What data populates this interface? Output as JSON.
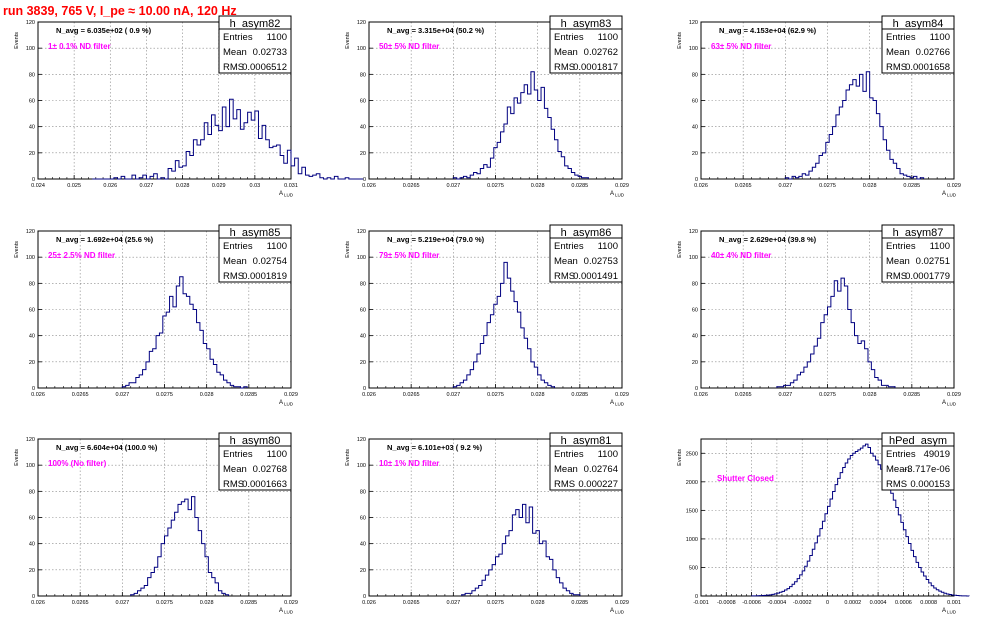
{
  "page_title": "run 3839,   765 V, I_pe ≈ 10.00 nA, 120 Hz",
  "colors": {
    "histogram": "#000080",
    "annotation": "#ff00ff",
    "title": "#ff0000",
    "grid": "#888888"
  },
  "axis_common": {
    "ylabel": "Events",
    "xlabel": "A",
    "xlabel_sub": "LUD"
  },
  "stat_labels": {
    "entries": "Entries",
    "mean": "Mean",
    "rms": "RMS"
  },
  "chart_data": [
    {
      "type": "histogram",
      "name": "h_asym82",
      "navg": "N_avg = 6.035e+02 ( 0.9 %)",
      "annotation": "1± 0.1% ND filter",
      "entries": "1100",
      "mean": "0.02733",
      "rms": "0.0006512",
      "xlim": [
        0.024,
        0.031
      ],
      "ylim": [
        0,
        120
      ],
      "xticks": [
        0.024,
        0.025,
        0.026,
        0.027,
        0.028,
        0.029,
        0.03,
        0.031
      ],
      "xticklabels": [
        "0.024",
        "0.025",
        "0.026",
        "0.027",
        "0.028",
        "0.029",
        "0.03",
        "0.031"
      ],
      "yticks": [
        0,
        20,
        40,
        60,
        80,
        100,
        120
      ],
      "yticklabels": [
        "0",
        "20",
        "40",
        "60",
        "80",
        "100",
        "120"
      ],
      "x_start": 0.0255,
      "bin_width": 0.0001,
      "values": [
        0,
        0,
        0,
        0,
        0,
        0,
        1,
        0,
        2,
        0,
        0,
        3,
        0,
        1,
        3,
        0,
        2,
        4,
        0,
        1,
        0,
        8,
        6,
        14,
        9,
        10,
        21,
        18,
        30,
        26,
        30,
        43,
        34,
        49,
        41,
        37,
        55,
        40,
        61,
        46,
        53,
        38,
        43,
        51,
        45,
        52,
        31,
        41,
        30,
        24,
        25,
        26,
        18,
        12,
        22,
        10,
        16,
        4,
        9,
        3,
        2,
        3,
        4,
        1,
        0,
        1,
        0,
        2,
        0,
        0,
        1,
        0,
        0,
        0,
        0
      ]
    },
    {
      "type": "histogram",
      "name": "h_asym83",
      "navg": "N_avg = 3.315e+04 (50.2 %)",
      "annotation": "50± 5% ND filter",
      "entries": "1100",
      "mean": "0.02762",
      "rms": "0.0001817",
      "xlim": [
        0.026,
        0.029
      ],
      "ylim": [
        0,
        120
      ],
      "xticks": [
        0.026,
        0.0265,
        0.027,
        0.0275,
        0.028,
        0.0285,
        0.029
      ],
      "xticklabels": [
        "0.026",
        "0.0265",
        "0.027",
        "0.0275",
        "0.028",
        "0.0285",
        "0.029"
      ],
      "yticks": [
        0,
        20,
        40,
        60,
        80,
        100,
        120
      ],
      "yticklabels": [
        "0",
        "20",
        "40",
        "60",
        "80",
        "100",
        "120"
      ],
      "x_start": 0.027,
      "bin_width": 4e-05,
      "values": [
        1,
        0,
        1,
        2,
        1,
        3,
        5,
        4,
        8,
        11,
        9,
        16,
        24,
        28,
        36,
        42,
        55,
        50,
        62,
        58,
        66,
        72,
        65,
        82,
        68,
        60,
        70,
        54,
        47,
        38,
        30,
        21,
        17,
        10,
        8,
        5,
        3,
        2,
        1,
        1
      ]
    },
    {
      "type": "histogram",
      "name": "h_asym84",
      "navg": "N_avg = 4.153e+04 (62.9 %)",
      "annotation": "63± 5% ND filter",
      "entries": "1100",
      "mean": "0.02766",
      "rms": "0.0001658",
      "xlim": [
        0.026,
        0.029
      ],
      "ylim": [
        0,
        120
      ],
      "xticks": [
        0.026,
        0.0265,
        0.027,
        0.0275,
        0.028,
        0.0285,
        0.029
      ],
      "xticklabels": [
        "0.026",
        "0.0265",
        "0.027",
        "0.0275",
        "0.028",
        "0.0285",
        "0.029"
      ],
      "yticks": [
        0,
        20,
        40,
        60,
        80,
        100,
        120
      ],
      "yticklabels": [
        "0",
        "20",
        "40",
        "60",
        "80",
        "100",
        "120"
      ],
      "x_start": 0.027,
      "bin_width": 4e-05,
      "values": [
        1,
        0,
        2,
        1,
        2,
        4,
        3,
        6,
        9,
        12,
        18,
        20,
        28,
        34,
        40,
        49,
        55,
        60,
        68,
        72,
        76,
        71,
        80,
        67,
        82,
        62,
        60,
        50,
        40,
        30,
        22,
        15,
        12,
        8,
        4,
        3,
        2,
        1,
        2,
        0,
        1
      ]
    },
    {
      "type": "histogram",
      "name": "h_asym85",
      "navg": "N_avg = 1.692e+04 (25.6 %)",
      "annotation": "25± 2.5% ND filter",
      "entries": "1100",
      "mean": "0.02754",
      "rms": "0.0001819",
      "xlim": [
        0.026,
        0.029
      ],
      "ylim": [
        0,
        120
      ],
      "xticks": [
        0.026,
        0.0265,
        0.027,
        0.0275,
        0.028,
        0.0285,
        0.029
      ],
      "xticklabels": [
        "0.026",
        "0.0265",
        "0.027",
        "0.0275",
        "0.028",
        "0.0285",
        "0.029"
      ],
      "yticks": [
        0,
        20,
        40,
        60,
        80,
        100,
        120
      ],
      "yticklabels": [
        "0",
        "20",
        "40",
        "60",
        "80",
        "100",
        "120"
      ],
      "x_start": 0.027,
      "bin_width": 4e-05,
      "values": [
        1,
        2,
        4,
        4,
        8,
        10,
        14,
        20,
        28,
        30,
        40,
        42,
        55,
        58,
        70,
        62,
        78,
        85,
        72,
        70,
        64,
        60,
        50,
        44,
        34,
        30,
        22,
        18,
        12,
        10,
        6,
        4,
        2,
        1,
        1,
        0,
        1
      ]
    },
    {
      "type": "histogram",
      "name": "h_asym86",
      "navg": "N_avg = 5.219e+04 (79.0 %)",
      "annotation": "79± 5% ND filter",
      "entries": "1100",
      "mean": "0.02753",
      "rms": "0.0001491",
      "xlim": [
        0.026,
        0.029
      ],
      "ylim": [
        0,
        120
      ],
      "xticks": [
        0.026,
        0.0265,
        0.027,
        0.0275,
        0.028,
        0.0285,
        0.029
      ],
      "xticklabels": [
        "0.026",
        "0.0265",
        "0.027",
        "0.0275",
        "0.028",
        "0.0285",
        "0.029"
      ],
      "yticks": [
        0,
        20,
        40,
        60,
        80,
        100,
        120
      ],
      "yticklabels": [
        "0",
        "20",
        "40",
        "60",
        "80",
        "100",
        "120"
      ],
      "x_start": 0.027,
      "bin_width": 4e-05,
      "values": [
        1,
        2,
        4,
        6,
        10,
        14,
        20,
        26,
        34,
        40,
        50,
        56,
        64,
        70,
        80,
        96,
        84,
        74,
        66,
        58,
        46,
        38,
        30,
        20,
        16,
        10,
        6,
        4,
        2,
        1
      ]
    },
    {
      "type": "histogram",
      "name": "h_asym87",
      "navg": "N_avg = 2.629e+04 (39.8 %)",
      "annotation": "40± 4% ND filter",
      "entries": "1100",
      "mean": "0.02751",
      "rms": "0.0001779",
      "xlim": [
        0.026,
        0.029
      ],
      "ylim": [
        0,
        120
      ],
      "xticks": [
        0.026,
        0.0265,
        0.027,
        0.0275,
        0.028,
        0.0285,
        0.029
      ],
      "xticklabels": [
        "0.026",
        "0.0265",
        "0.027",
        "0.0275",
        "0.028",
        "0.0285",
        "0.029"
      ],
      "yticks": [
        0,
        20,
        40,
        60,
        80,
        100,
        120
      ],
      "yticklabels": [
        "0",
        "20",
        "40",
        "60",
        "80",
        "100",
        "120"
      ],
      "x_start": 0.0269,
      "bin_width": 4e-05,
      "values": [
        1,
        1,
        2,
        2,
        4,
        6,
        10,
        12,
        16,
        20,
        26,
        32,
        38,
        50,
        56,
        62,
        70,
        82,
        74,
        84,
        78,
        60,
        50,
        40,
        34,
        36,
        30,
        20,
        14,
        8,
        6,
        2,
        2,
        1,
        1
      ]
    },
    {
      "type": "histogram",
      "name": "h_asym80",
      "navg": "N_avg = 6.604e+04 (100.0 %)",
      "annotation": "100% (No filter)",
      "entries": "1100",
      "mean": "0.02768",
      "rms": "0.0001663",
      "xlim": [
        0.026,
        0.029
      ],
      "ylim": [
        0,
        120
      ],
      "xticks": [
        0.026,
        0.0265,
        0.027,
        0.0275,
        0.028,
        0.0285,
        0.029
      ],
      "xticklabels": [
        "0.026",
        "0.0265",
        "0.027",
        "0.0275",
        "0.028",
        "0.0285",
        "0.029"
      ],
      "yticks": [
        0,
        20,
        40,
        60,
        80,
        100,
        120
      ],
      "yticklabels": [
        "0",
        "20",
        "40",
        "60",
        "80",
        "100",
        "120"
      ],
      "x_start": 0.0271,
      "bin_width": 4e-05,
      "values": [
        1,
        2,
        4,
        6,
        8,
        14,
        18,
        22,
        30,
        40,
        46,
        52,
        58,
        64,
        70,
        72,
        74,
        66,
        76,
        60,
        50,
        40,
        30,
        18,
        14,
        10,
        4,
        2,
        1
      ]
    },
    {
      "type": "histogram",
      "name": "h_asym81",
      "navg": "N_avg = 6.101e+03 ( 9.2 %)",
      "annotation": "10± 1% ND filter",
      "entries": "1100",
      "mean": "0.02764",
      "rms": "0.000227",
      "xlim": [
        0.026,
        0.029
      ],
      "ylim": [
        0,
        120
      ],
      "xticks": [
        0.026,
        0.0265,
        0.027,
        0.0275,
        0.028,
        0.0285,
        0.029
      ],
      "xticklabels": [
        "0.026",
        "0.0265",
        "0.027",
        "0.0275",
        "0.028",
        "0.0285",
        "0.029"
      ],
      "yticks": [
        0,
        20,
        40,
        60,
        80,
        100,
        120
      ],
      "yticklabels": [
        "0",
        "20",
        "40",
        "60",
        "80",
        "100",
        "120"
      ],
      "x_start": 0.0271,
      "bin_width": 4e-05,
      "values": [
        1,
        2,
        2,
        4,
        6,
        8,
        12,
        16,
        20,
        24,
        30,
        32,
        40,
        46,
        50,
        62,
        66,
        60,
        70,
        56,
        68,
        48,
        50,
        40,
        42,
        30,
        28,
        20,
        14,
        10,
        6,
        4,
        2,
        1,
        1
      ]
    },
    {
      "type": "histogram",
      "name": "hPed_asym",
      "navg": "",
      "annotation": "Shutter Closed",
      "entries": "49019",
      "mean": "-3.717e-06",
      "rms": "0.000153",
      "xlim": [
        -0.001,
        0.001
      ],
      "ylim": [
        0,
        2750
      ],
      "xticks": [
        -0.001,
        -0.0008,
        -0.0006,
        -0.0004,
        -0.0002,
        0,
        0.0002,
        0.0004,
        0.0006,
        0.0008,
        0.001
      ],
      "xticklabels": [
        "-0.001",
        "-0.0008",
        "-0.0006",
        "-0.0004",
        "-0.0002",
        "0",
        "0.0002",
        "0.0004",
        "0.0006",
        "0.0008",
        "0.001"
      ],
      "yticks": [
        0,
        500,
        1000,
        1500,
        2000,
        2500
      ],
      "yticklabels": [
        "0",
        "500",
        "1000",
        "1500",
        "2000",
        "2500"
      ],
      "x_start": -0.0006,
      "bin_width": 2e-05,
      "values": [
        2,
        3,
        5,
        6,
        8,
        10,
        15,
        20,
        28,
        38,
        50,
        65,
        80,
        105,
        130,
        165,
        205,
        250,
        305,
        370,
        440,
        520,
        610,
        710,
        820,
        930,
        1050,
        1180,
        1310,
        1440,
        1570,
        1700,
        1830,
        1950,
        2060,
        2160,
        2250,
        2330,
        2400,
        2460,
        2500,
        2530,
        2560,
        2590,
        2630,
        2660,
        2600,
        2500,
        2450,
        2380,
        2300,
        2220,
        2130,
        2030,
        1920,
        1800,
        1680,
        1550,
        1420,
        1290,
        1160,
        1040,
        920,
        800,
        690,
        590,
        500,
        420,
        350,
        290,
        230,
        180,
        140,
        110,
        85,
        65,
        48,
        36,
        26,
        18,
        12,
        8,
        5,
        3,
        2,
        1
      ]
    }
  ]
}
